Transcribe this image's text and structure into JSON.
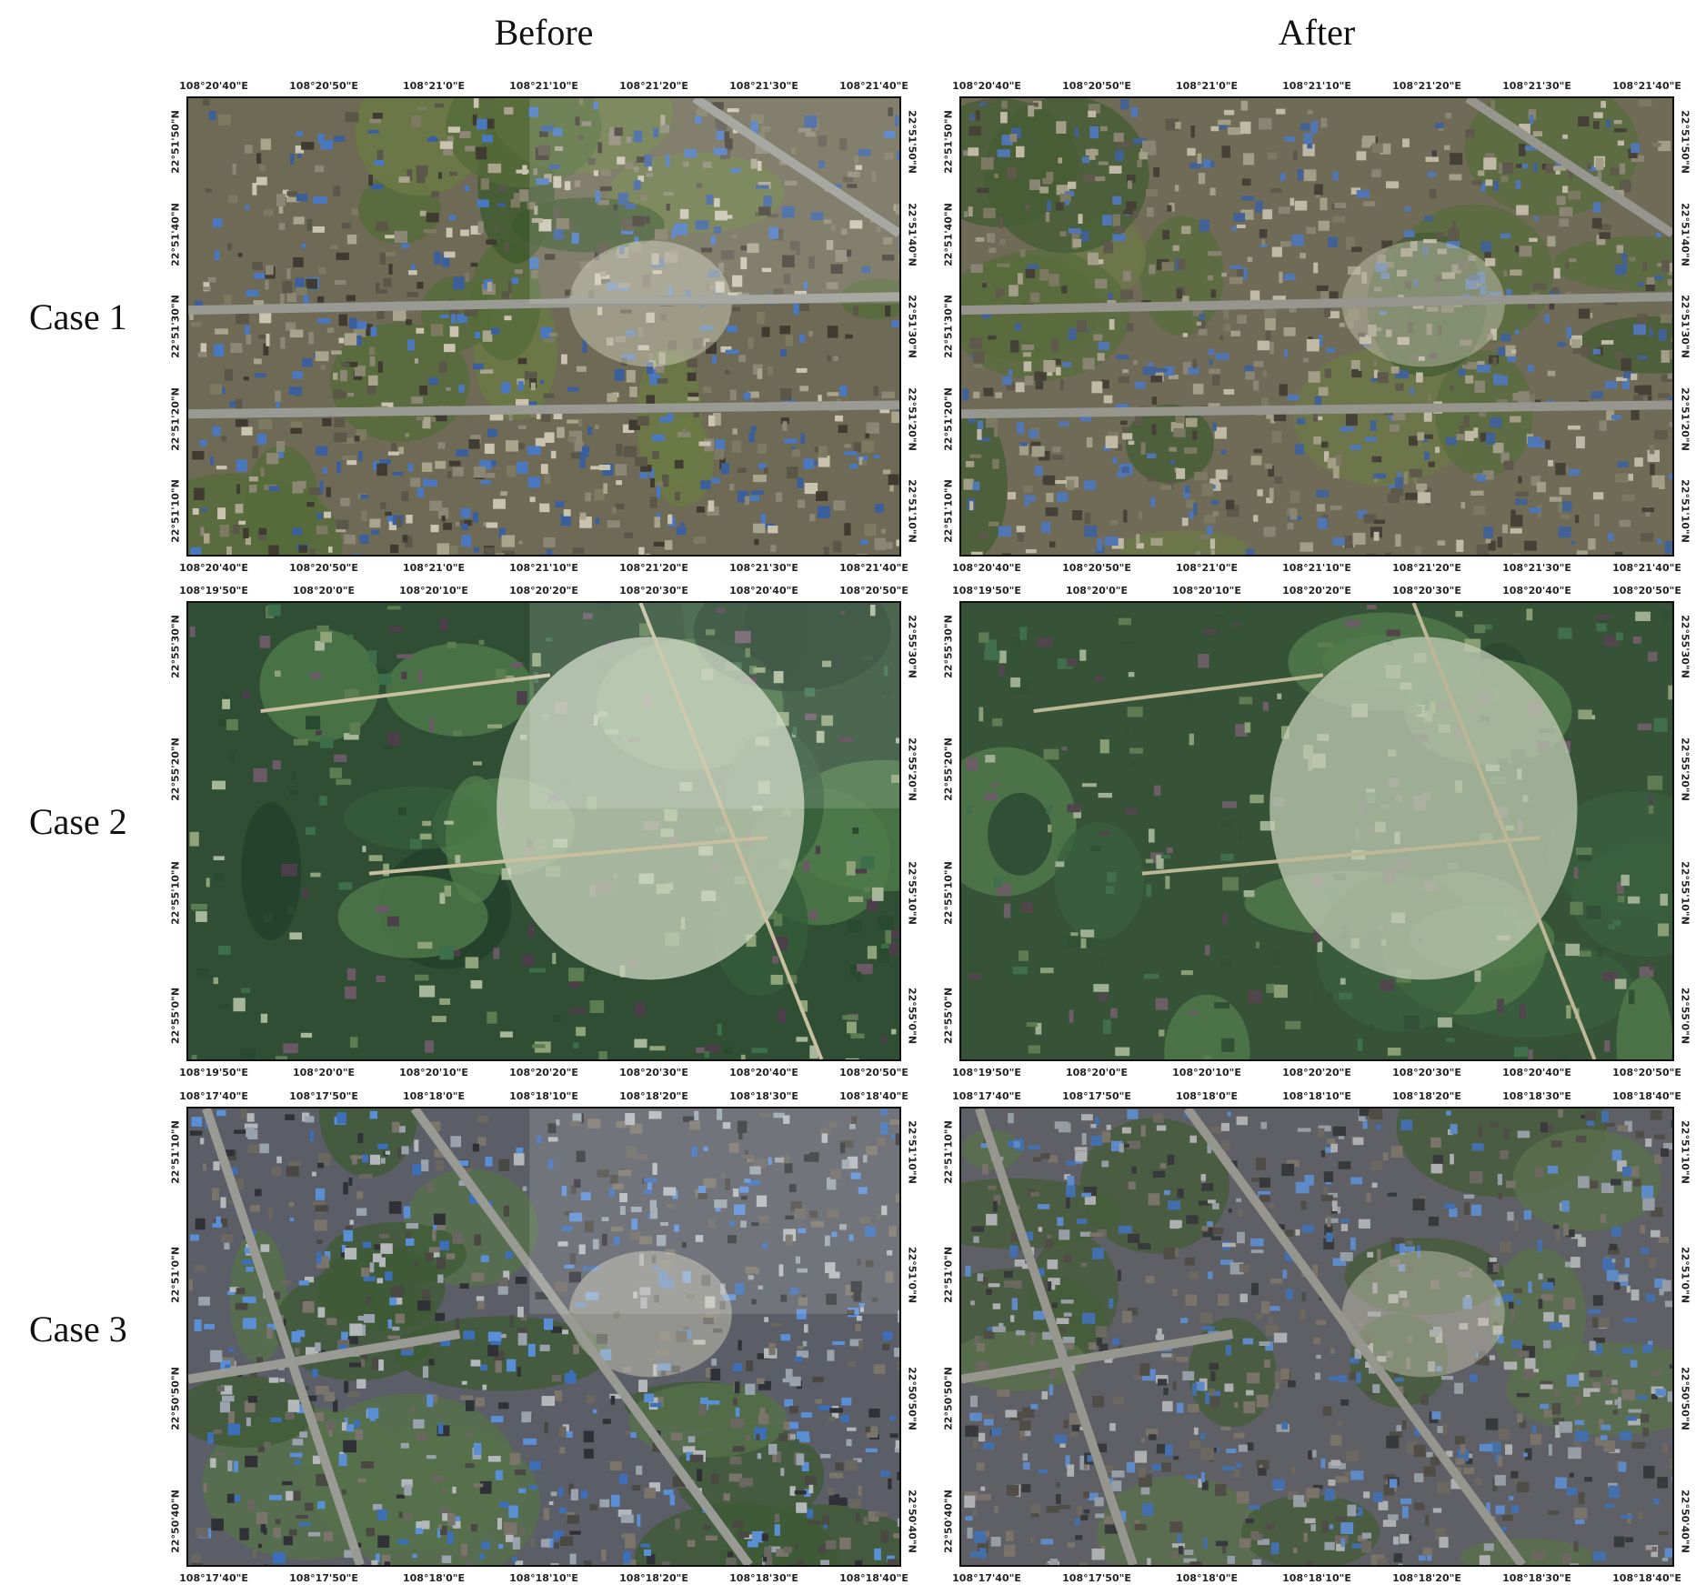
{
  "columns": [
    "Before",
    "After"
  ],
  "rows": [
    {
      "label": "Case 1",
      "theme": "urban",
      "lon_ticks": [
        "108°20'40\"E",
        "108°20'50\"E",
        "108°21'0\"E",
        "108°21'10\"E",
        "108°21'20\"E",
        "108°21'30\"E",
        "108°21'40\"E"
      ],
      "lat_ticks": [
        "22°51'50\"N",
        "22°51'40\"N",
        "22°51'30\"N",
        "22°51'20\"N",
        "22°51'10\"N"
      ]
    },
    {
      "label": "Case 2",
      "theme": "rural",
      "lon_ticks": [
        "108°19'50\"E",
        "108°20'0\"E",
        "108°20'10\"E",
        "108°20'20\"E",
        "108°20'30\"E",
        "108°20'40\"E",
        "108°20'50\"E"
      ],
      "lat_ticks": [
        "22°55'30\"N",
        "22°55'20\"N",
        "22°55'10\"N",
        "22°55'0\"N"
      ]
    },
    {
      "label": "Case 3",
      "theme": "dense",
      "lon_ticks": [
        "108°17'40\"E",
        "108°17'50\"E",
        "108°18'0\"E",
        "108°18'10\"E",
        "108°18'20\"E",
        "108°18'30\"E",
        "108°18'40\"E"
      ],
      "lat_ticks": [
        "22°51'10\"N",
        "22°51'0\"N",
        "22°50'50\"N",
        "22°50'40\"N"
      ]
    }
  ]
}
